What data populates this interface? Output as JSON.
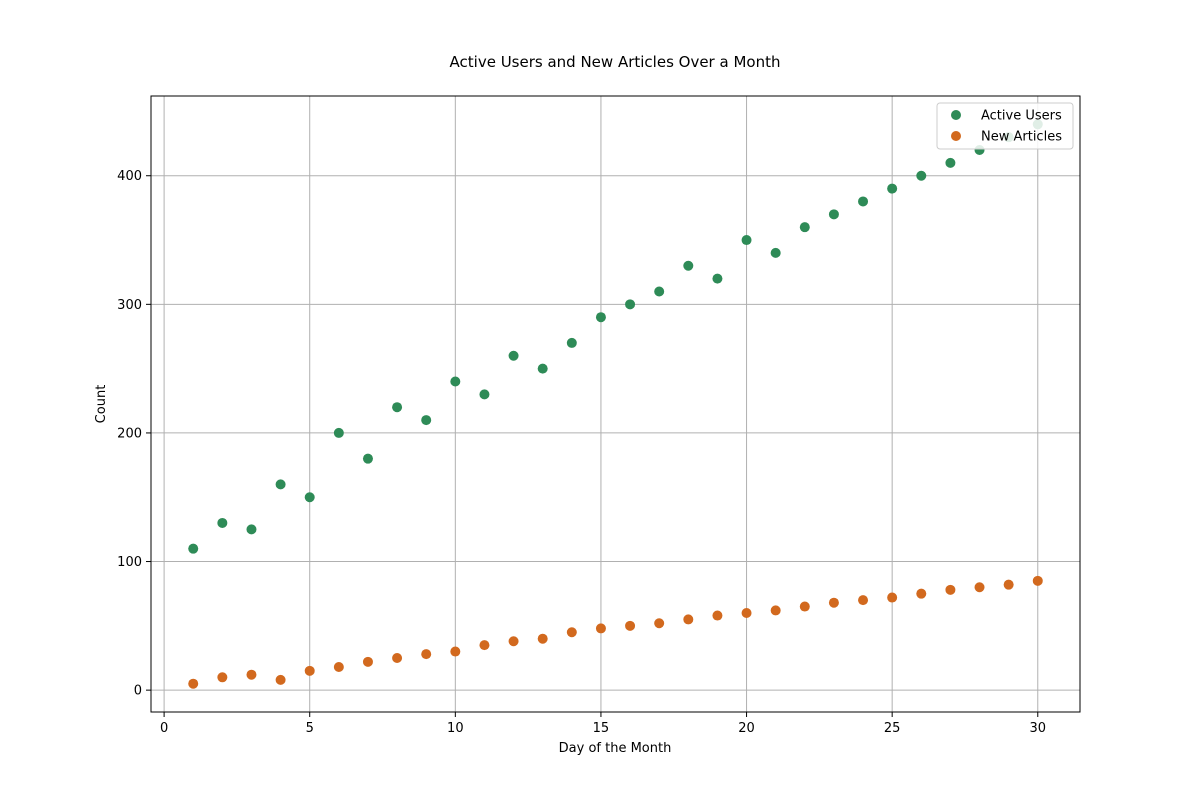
{
  "chart_data": {
    "type": "scatter",
    "title": "Active Users and New Articles Over a Month",
    "xlabel": "Day of the Month",
    "ylabel": "Count",
    "xlim": [
      -0.45,
      31.45
    ],
    "ylim": [
      -17,
      462
    ],
    "x_ticks": [
      0,
      5,
      10,
      15,
      20,
      25,
      30
    ],
    "y_ticks": [
      0,
      100,
      200,
      300,
      400
    ],
    "grid": true,
    "legend_position": "top-right",
    "x": [
      1,
      2,
      3,
      4,
      5,
      6,
      7,
      8,
      9,
      10,
      11,
      12,
      13,
      14,
      15,
      16,
      17,
      18,
      19,
      20,
      21,
      22,
      23,
      24,
      25,
      26,
      27,
      28,
      29,
      30
    ],
    "series": [
      {
        "name": "Active Users",
        "color": "#2e8b57",
        "values": [
          110,
          130,
          125,
          160,
          150,
          200,
          180,
          220,
          210,
          240,
          230,
          260,
          250,
          270,
          290,
          300,
          310,
          330,
          320,
          350,
          340,
          360,
          370,
          380,
          390,
          400,
          410,
          420,
          430,
          440
        ]
      },
      {
        "name": "New Articles",
        "color": "#d2691e",
        "values": [
          5,
          10,
          12,
          8,
          15,
          18,
          22,
          25,
          28,
          30,
          35,
          38,
          40,
          45,
          48,
          50,
          52,
          55,
          58,
          60,
          62,
          65,
          68,
          70,
          72,
          75,
          78,
          80,
          82,
          85
        ]
      }
    ]
  }
}
